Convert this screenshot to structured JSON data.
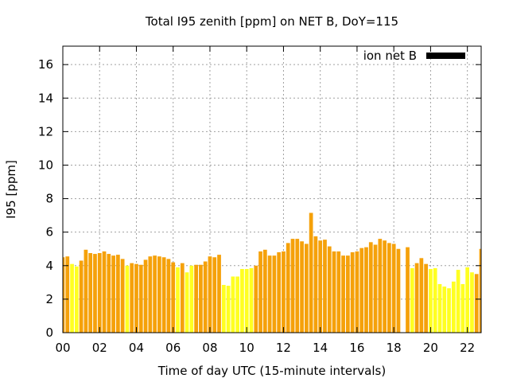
{
  "chart_data": {
    "type": "bar",
    "title": "Total I95 zenith [ppm] on NET B, DoY=115",
    "xlabel": "Time of day UTC (15-minute intervals)",
    "ylabel": "I95 [ppm]",
    "xlim": [
      0,
      22.75
    ],
    "ylim": [
      0,
      17.1
    ],
    "xticks": [
      "00",
      "02",
      "04",
      "06",
      "08",
      "10",
      "12",
      "14",
      "16",
      "18",
      "20",
      "22"
    ],
    "yticks": [
      "0",
      "2",
      "4",
      "6",
      "8",
      "10",
      "12",
      "14",
      "16"
    ],
    "grid": true,
    "legend": {
      "position": "top-right",
      "label": "ion net B",
      "color": "#000000"
    },
    "colors": {
      "orange": "#f5a10a",
      "yellow": "#ffff22"
    },
    "bars": [
      {
        "x": 0.0,
        "value": 4.5,
        "color": "orange"
      },
      {
        "x": 0.25,
        "value": 4.55,
        "color": "orange"
      },
      {
        "x": 0.5,
        "value": 4.1,
        "color": "yellow"
      },
      {
        "x": 0.75,
        "value": 3.95,
        "color": "yellow"
      },
      {
        "x": 1.0,
        "value": 4.3,
        "color": "orange"
      },
      {
        "x": 1.25,
        "value": 4.95,
        "color": "orange"
      },
      {
        "x": 1.5,
        "value": 4.75,
        "color": "orange"
      },
      {
        "x": 1.75,
        "value": 4.7,
        "color": "orange"
      },
      {
        "x": 2.0,
        "value": 4.75,
        "color": "orange"
      },
      {
        "x": 2.25,
        "value": 4.85,
        "color": "orange"
      },
      {
        "x": 2.5,
        "value": 4.7,
        "color": "orange"
      },
      {
        "x": 2.75,
        "value": 4.6,
        "color": "orange"
      },
      {
        "x": 3.0,
        "value": 4.65,
        "color": "orange"
      },
      {
        "x": 3.25,
        "value": 4.4,
        "color": "orange"
      },
      {
        "x": 3.5,
        "value": 4.0,
        "color": "yellow"
      },
      {
        "x": 3.75,
        "value": 4.15,
        "color": "orange"
      },
      {
        "x": 4.0,
        "value": 4.1,
        "color": "orange"
      },
      {
        "x": 4.25,
        "value": 4.05,
        "color": "orange"
      },
      {
        "x": 4.5,
        "value": 4.35,
        "color": "orange"
      },
      {
        "x": 4.75,
        "value": 4.55,
        "color": "orange"
      },
      {
        "x": 5.0,
        "value": 4.6,
        "color": "orange"
      },
      {
        "x": 5.25,
        "value": 4.55,
        "color": "orange"
      },
      {
        "x": 5.5,
        "value": 4.5,
        "color": "orange"
      },
      {
        "x": 5.75,
        "value": 4.4,
        "color": "orange"
      },
      {
        "x": 6.0,
        "value": 4.2,
        "color": "orange"
      },
      {
        "x": 6.25,
        "value": 3.9,
        "color": "yellow"
      },
      {
        "x": 6.5,
        "value": 4.15,
        "color": "orange"
      },
      {
        "x": 6.75,
        "value": 3.6,
        "color": "yellow"
      },
      {
        "x": 7.0,
        "value": 4.0,
        "color": "yellow"
      },
      {
        "x": 7.25,
        "value": 4.05,
        "color": "orange"
      },
      {
        "x": 7.5,
        "value": 4.05,
        "color": "orange"
      },
      {
        "x": 7.75,
        "value": 4.25,
        "color": "orange"
      },
      {
        "x": 8.0,
        "value": 4.55,
        "color": "orange"
      },
      {
        "x": 8.25,
        "value": 4.5,
        "color": "orange"
      },
      {
        "x": 8.5,
        "value": 4.65,
        "color": "orange"
      },
      {
        "x": 8.75,
        "value": 2.85,
        "color": "yellow"
      },
      {
        "x": 9.0,
        "value": 2.8,
        "color": "yellow"
      },
      {
        "x": 9.25,
        "value": 3.35,
        "color": "yellow"
      },
      {
        "x": 9.5,
        "value": 3.35,
        "color": "yellow"
      },
      {
        "x": 9.75,
        "value": 3.8,
        "color": "yellow"
      },
      {
        "x": 10.0,
        "value": 3.8,
        "color": "yellow"
      },
      {
        "x": 10.25,
        "value": 3.85,
        "color": "yellow"
      },
      {
        "x": 10.5,
        "value": 4.0,
        "color": "orange"
      },
      {
        "x": 10.75,
        "value": 4.85,
        "color": "orange"
      },
      {
        "x": 11.0,
        "value": 4.95,
        "color": "orange"
      },
      {
        "x": 11.25,
        "value": 4.6,
        "color": "orange"
      },
      {
        "x": 11.5,
        "value": 4.6,
        "color": "orange"
      },
      {
        "x": 11.75,
        "value": 4.8,
        "color": "orange"
      },
      {
        "x": 12.0,
        "value": 4.85,
        "color": "orange"
      },
      {
        "x": 12.25,
        "value": 5.35,
        "color": "orange"
      },
      {
        "x": 12.5,
        "value": 5.6,
        "color": "orange"
      },
      {
        "x": 12.75,
        "value": 5.6,
        "color": "orange"
      },
      {
        "x": 13.0,
        "value": 5.45,
        "color": "orange"
      },
      {
        "x": 13.25,
        "value": 5.3,
        "color": "orange"
      },
      {
        "x": 13.5,
        "value": 7.15,
        "color": "orange"
      },
      {
        "x": 13.75,
        "value": 5.75,
        "color": "orange"
      },
      {
        "x": 14.0,
        "value": 5.5,
        "color": "orange"
      },
      {
        "x": 14.25,
        "value": 5.55,
        "color": "orange"
      },
      {
        "x": 14.5,
        "value": 5.15,
        "color": "orange"
      },
      {
        "x": 14.75,
        "value": 4.85,
        "color": "orange"
      },
      {
        "x": 15.0,
        "value": 4.85,
        "color": "orange"
      },
      {
        "x": 15.25,
        "value": 4.6,
        "color": "orange"
      },
      {
        "x": 15.5,
        "value": 4.6,
        "color": "orange"
      },
      {
        "x": 15.75,
        "value": 4.8,
        "color": "orange"
      },
      {
        "x": 16.0,
        "value": 4.85,
        "color": "orange"
      },
      {
        "x": 16.25,
        "value": 5.05,
        "color": "orange"
      },
      {
        "x": 16.5,
        "value": 5.1,
        "color": "orange"
      },
      {
        "x": 16.75,
        "value": 5.4,
        "color": "orange"
      },
      {
        "x": 17.0,
        "value": 5.25,
        "color": "orange"
      },
      {
        "x": 17.25,
        "value": 5.6,
        "color": "orange"
      },
      {
        "x": 17.5,
        "value": 5.5,
        "color": "orange"
      },
      {
        "x": 17.75,
        "value": 5.35,
        "color": "orange"
      },
      {
        "x": 18.0,
        "value": 5.3,
        "color": "orange"
      },
      {
        "x": 18.25,
        "value": 5.0,
        "color": "orange"
      },
      {
        "x": 18.75,
        "value": 5.1,
        "color": "orange"
      },
      {
        "x": 19.0,
        "value": 3.85,
        "color": "yellow"
      },
      {
        "x": 19.25,
        "value": 4.15,
        "color": "orange"
      },
      {
        "x": 19.5,
        "value": 4.45,
        "color": "orange"
      },
      {
        "x": 19.75,
        "value": 4.1,
        "color": "orange"
      },
      {
        "x": 20.0,
        "value": 3.8,
        "color": "yellow"
      },
      {
        "x": 20.25,
        "value": 3.85,
        "color": "yellow"
      },
      {
        "x": 20.5,
        "value": 2.9,
        "color": "yellow"
      },
      {
        "x": 20.75,
        "value": 2.75,
        "color": "yellow"
      },
      {
        "x": 21.0,
        "value": 2.65,
        "color": "yellow"
      },
      {
        "x": 21.25,
        "value": 3.05,
        "color": "yellow"
      },
      {
        "x": 21.5,
        "value": 3.75,
        "color": "yellow"
      },
      {
        "x": 21.75,
        "value": 2.9,
        "color": "yellow"
      },
      {
        "x": 22.0,
        "value": 3.9,
        "color": "yellow"
      },
      {
        "x": 22.25,
        "value": 3.6,
        "color": "yellow"
      },
      {
        "x": 22.5,
        "value": 3.5,
        "color": "orange"
      },
      {
        "x": 22.75,
        "value": 5.0,
        "color": "orange"
      }
    ]
  }
}
